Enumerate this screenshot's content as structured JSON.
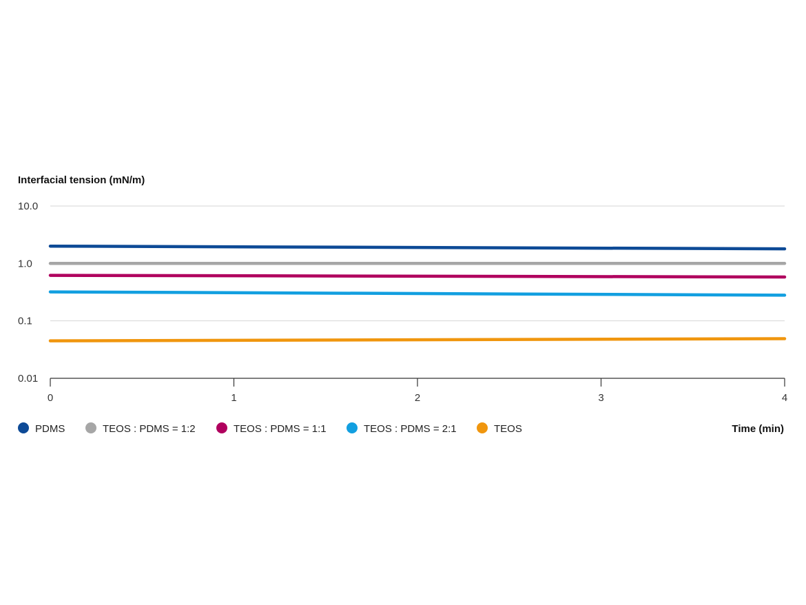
{
  "chart_data": {
    "type": "line",
    "title": "",
    "ylabel": "Interfacial tension (mN/m)",
    "xlabel": "Time (min)",
    "yscale": "log",
    "ylim": [
      0.01,
      10.0
    ],
    "xlim": [
      0,
      4
    ],
    "xticks": [
      0,
      1,
      2,
      3,
      4
    ],
    "xtick_labels": [
      "0",
      "1",
      "2",
      "3",
      "4"
    ],
    "yticks": [
      10.0,
      1.0,
      0.1,
      0.01
    ],
    "ytick_labels": [
      "10.0",
      "1.0",
      "0.1",
      "0.01"
    ],
    "grid": "horizontal",
    "legend_position": "bottom",
    "series": [
      {
        "name": "PDMS",
        "color": "#0d4a96",
        "x": [
          0,
          4
        ],
        "y": [
          2.0,
          1.8
        ]
      },
      {
        "name": "TEOS : PDMS = 1:2",
        "color": "#a6a6a6",
        "x": [
          0,
          4
        ],
        "y": [
          1.0,
          1.0
        ]
      },
      {
        "name": "TEOS : PDMS = 1:1",
        "color": "#b0005e",
        "x": [
          0,
          4
        ],
        "y": [
          0.62,
          0.58
        ]
      },
      {
        "name": "TEOS : PDMS = 2:1",
        "color": "#129fe0",
        "x": [
          0,
          4
        ],
        "y": [
          0.32,
          0.28
        ]
      },
      {
        "name": "TEOS",
        "color": "#f0960e",
        "x": [
          0,
          4
        ],
        "y": [
          0.045,
          0.049
        ]
      }
    ]
  }
}
